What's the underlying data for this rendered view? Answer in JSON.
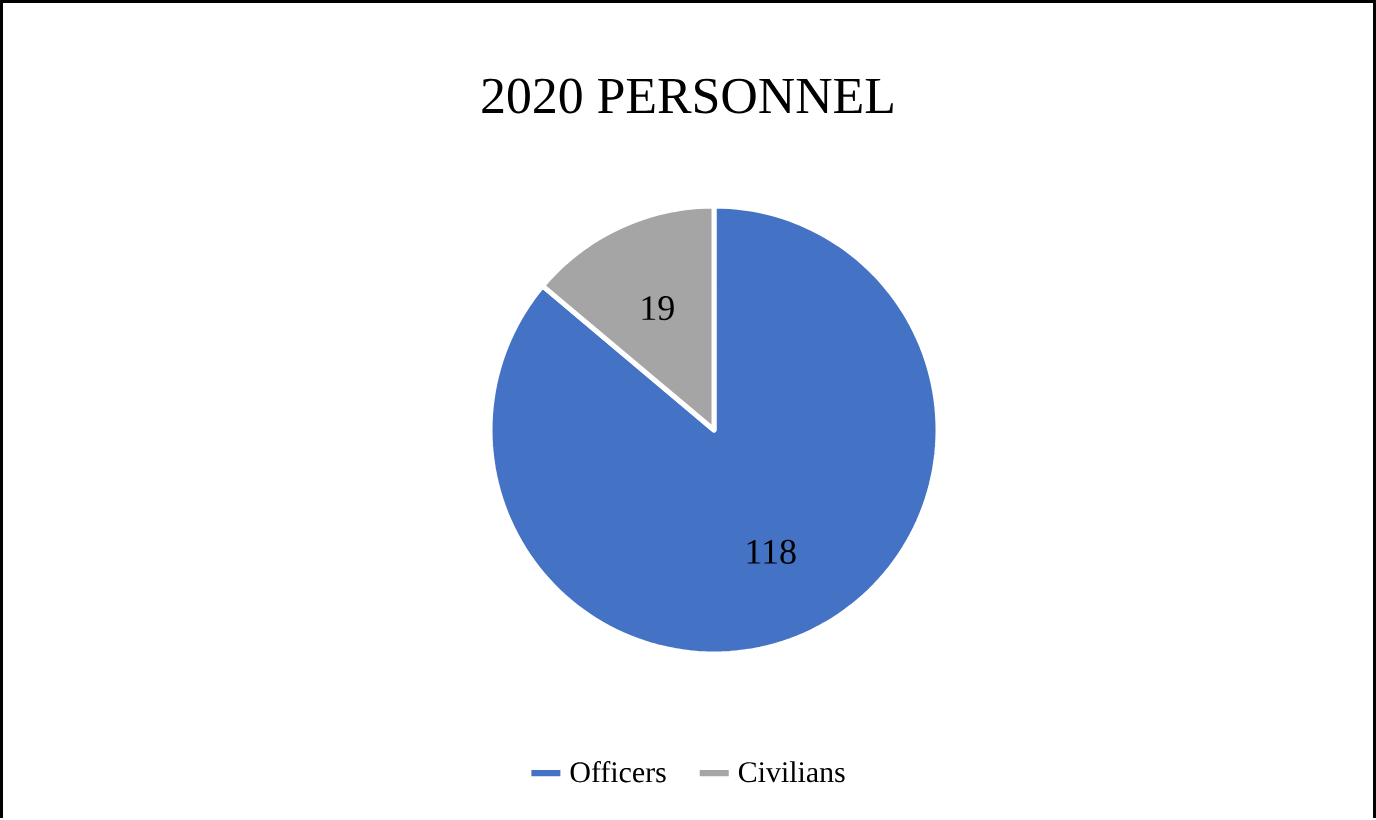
{
  "chart_data": {
    "type": "pie",
    "title": "2020 PERSONNEL",
    "categories": [
      "Officers",
      "Civilians"
    ],
    "values": [
      118,
      19
    ],
    "colors": [
      "#4472c4",
      "#a5a5a5"
    ],
    "data_labels": true,
    "legend": "bottom"
  }
}
